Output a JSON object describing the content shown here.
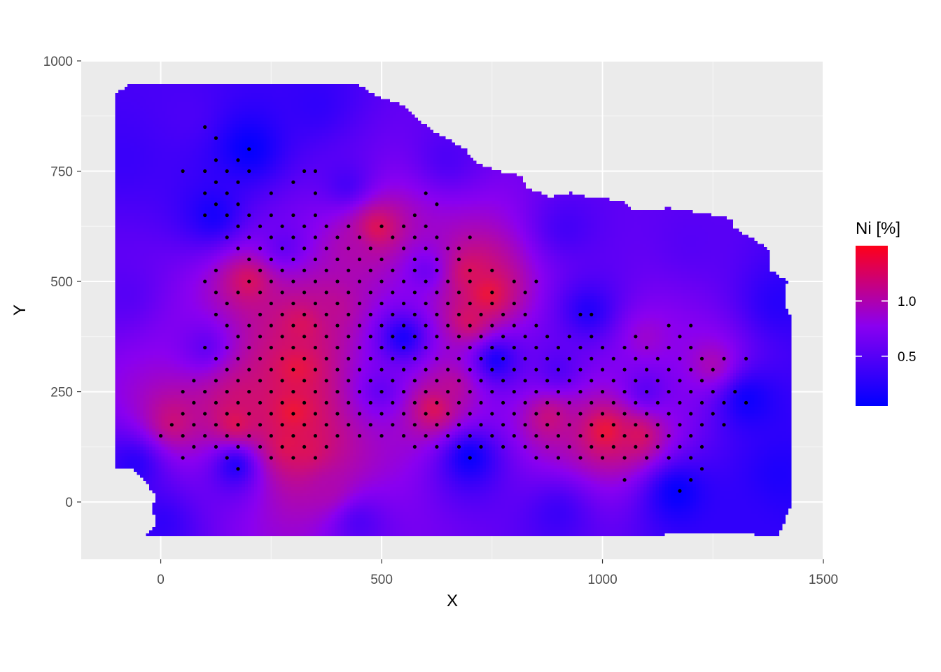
{
  "chart_data": {
    "type": "heatmap",
    "xlabel": "X",
    "ylabel": "Y",
    "xlim": [
      -180,
      1500
    ],
    "ylim": [
      -130,
      1000
    ],
    "x_ticks": [
      0,
      500,
      1000,
      1500
    ],
    "x_tick_labels": [
      "0",
      "500",
      "1000",
      "1500"
    ],
    "y_ticks": [
      0,
      250,
      500,
      750,
      1000
    ],
    "y_tick_labels": [
      "0",
      "250",
      "500",
      "750",
      "1000"
    ],
    "grid": true,
    "legend": {
      "title": "Ni [%]",
      "placement": "right",
      "breaks": [
        0.5,
        1.0
      ],
      "break_labels": [
        "0.5",
        "1.0"
      ],
      "min": 0.05,
      "max": 1.5
    },
    "color_scale": {
      "low": "#0000ff",
      "high": "#ff0018"
    },
    "surface_outline": [
      [
        -105,
        70
      ],
      [
        -60,
        70
      ],
      [
        -40,
        50
      ],
      [
        -25,
        30
      ],
      [
        -10,
        10
      ],
      [
        -20,
        -20
      ],
      [
        -10,
        -50
      ],
      [
        -35,
        -80
      ],
      [
        300,
        -80
      ],
      [
        700,
        -80
      ],
      [
        1000,
        -80
      ],
      [
        1290,
        -75
      ],
      [
        1400,
        -80
      ],
      [
        1430,
        -10
      ],
      [
        1430,
        420
      ],
      [
        1415,
        440
      ],
      [
        1420,
        500
      ],
      [
        1380,
        525
      ],
      [
        1380,
        570
      ],
      [
        1335,
        600
      ],
      [
        1300,
        620
      ],
      [
        1300,
        640
      ],
      [
        1250,
        650
      ],
      [
        1195,
        660
      ],
      [
        1150,
        665
      ],
      [
        1070,
        660
      ],
      [
        1050,
        680
      ],
      [
        990,
        690
      ],
      [
        970,
        690
      ],
      [
        930,
        700
      ],
      [
        880,
        690
      ],
      [
        860,
        700
      ],
      [
        830,
        710
      ],
      [
        820,
        740
      ],
      [
        780,
        745
      ],
      [
        720,
        765
      ],
      [
        690,
        800
      ],
      [
        620,
        840
      ],
      [
        580,
        870
      ],
      [
        550,
        900
      ],
      [
        500,
        915
      ],
      [
        440,
        950
      ],
      [
        250,
        950
      ],
      [
        100,
        950
      ],
      [
        -70,
        950
      ],
      [
        -105,
        920
      ]
    ],
    "ni_points": [
      {
        "x": 300,
        "y": 200,
        "value": 1.45
      },
      {
        "x": 310,
        "y": 300,
        "value": 1.4
      },
      {
        "x": 320,
        "y": 400,
        "value": 1.3
      },
      {
        "x": 290,
        "y": 130,
        "value": 1.35
      },
      {
        "x": 330,
        "y": 120,
        "value": 1.3
      },
      {
        "x": 170,
        "y": 180,
        "value": 1.35
      },
      {
        "x": 190,
        "y": 230,
        "value": 1.2
      },
      {
        "x": 30,
        "y": 180,
        "value": 1.2
      },
      {
        "x": 200,
        "y": 500,
        "value": 1.3
      },
      {
        "x": 490,
        "y": 620,
        "value": 1.35
      },
      {
        "x": 440,
        "y": 570,
        "value": 1.0
      },
      {
        "x": 740,
        "y": 470,
        "value": 1.45
      },
      {
        "x": 700,
        "y": 520,
        "value": 1.3
      },
      {
        "x": 700,
        "y": 410,
        "value": 1.3
      },
      {
        "x": 620,
        "y": 210,
        "value": 1.35
      },
      {
        "x": 660,
        "y": 260,
        "value": 1.1
      },
      {
        "x": 880,
        "y": 190,
        "value": 1.2
      },
      {
        "x": 1010,
        "y": 160,
        "value": 1.45
      },
      {
        "x": 1080,
        "y": 150,
        "value": 1.3
      },
      {
        "x": 1250,
        "y": 310,
        "value": 1.0
      },
      {
        "x": 1100,
        "y": 370,
        "value": 0.9
      },
      {
        "x": 380,
        "y": 30,
        "value": 1.0
      },
      {
        "x": 390,
        "y": 440,
        "value": 1.1
      },
      {
        "x": 200,
        "y": 800,
        "value": 0.05
      },
      {
        "x": 120,
        "y": 650,
        "value": 0.15
      },
      {
        "x": 700,
        "y": 100,
        "value": 0.05
      },
      {
        "x": 760,
        "y": 320,
        "value": 0.1
      },
      {
        "x": 550,
        "y": 370,
        "value": 0.1
      },
      {
        "x": 1170,
        "y": 20,
        "value": 0.05
      },
      {
        "x": 1330,
        "y": 230,
        "value": 0.1
      },
      {
        "x": 170,
        "y": 80,
        "value": 0.15
      },
      {
        "x": 970,
        "y": 430,
        "value": 0.2
      },
      {
        "x": -60,
        "y": 80,
        "value": 0.25
      },
      {
        "x": 1400,
        "y": 60,
        "value": 0.2
      },
      {
        "x": 1400,
        "y": 450,
        "value": 0.25
      },
      {
        "x": 60,
        "y": 880,
        "value": 0.45
      },
      {
        "x": 350,
        "y": 900,
        "value": 0.3
      },
      {
        "x": 650,
        "y": 780,
        "value": 0.45
      },
      {
        "x": 920,
        "y": 620,
        "value": 0.4
      },
      {
        "x": 1200,
        "y": 590,
        "value": 0.5
      },
      {
        "x": -80,
        "y": 470,
        "value": 0.5
      },
      {
        "x": -80,
        "y": 780,
        "value": 0.35
      },
      {
        "x": 0,
        "y": -50,
        "value": 0.3
      },
      {
        "x": 450,
        "y": -50,
        "value": 0.45
      },
      {
        "x": 900,
        "y": -30,
        "value": 0.35
      },
      {
        "x": 1300,
        "y": -50,
        "value": 0.3
      },
      {
        "x": 500,
        "y": 250,
        "value": 0.55
      },
      {
        "x": 600,
        "y": 520,
        "value": 0.6
      },
      {
        "x": 900,
        "y": 300,
        "value": 0.45
      },
      {
        "x": 100,
        "y": 350,
        "value": 0.55
      },
      {
        "x": 1100,
        "y": 250,
        "value": 0.5
      },
      {
        "x": 420,
        "y": 720,
        "value": 0.4
      },
      {
        "x": 280,
        "y": 580,
        "value": 0.55
      }
    ],
    "sample_rows": [
      {
        "y": 850,
        "x": [
          100
        ]
      },
      {
        "y": 825,
        "x": [
          125
        ]
      },
      {
        "y": 800,
        "x": [
          200
        ]
      },
      {
        "y": 775,
        "x": [
          125,
          175
        ]
      },
      {
        "y": 750,
        "x": [
          50,
          100,
          150,
          200,
          325,
          350
        ]
      },
      {
        "y": 725,
        "x": [
          125,
          175,
          300
        ]
      },
      {
        "y": 700,
        "x": [
          100,
          150,
          250,
          350,
          600
        ]
      },
      {
        "y": 675,
        "x": [
          125,
          175,
          625
        ]
      },
      {
        "y": 650,
        "x": [
          100,
          150,
          200,
          250,
          300,
          350,
          575
        ]
      },
      {
        "y": 625,
        "x": [
          175,
          225,
          275,
          325,
          375,
          425,
          500,
          550,
          600
        ]
      },
      {
        "y": 600,
        "x": [
          150,
          200,
          250,
          300,
          350,
          400,
          450,
          525,
          575,
          625,
          700
        ]
      },
      {
        "y": 575,
        "x": [
          175,
          225,
          275,
          325,
          375,
          425,
          475,
          550,
          600,
          650,
          675
        ]
      },
      {
        "y": 550,
        "x": [
          200,
          250,
          300,
          350,
          400,
          450,
          500,
          575,
          625,
          675
        ]
      },
      {
        "y": 525,
        "x": [
          125,
          225,
          275,
          325,
          375,
          425,
          475,
          525,
          575,
          625,
          700,
          750
        ]
      },
      {
        "y": 500,
        "x": [
          100,
          200,
          250,
          300,
          350,
          400,
          450,
          500,
          550,
          600,
          650,
          700,
          800,
          850
        ]
      },
      {
        "y": 475,
        "x": [
          125,
          175,
          225,
          275,
          325,
          375,
          425,
          475,
          525,
          575,
          625,
          675,
          750,
          825
        ]
      },
      {
        "y": 450,
        "x": [
          150,
          250,
          300,
          350,
          400,
          450,
          500,
          550,
          600,
          650,
          700,
          750,
          800
        ]
      },
      {
        "y": 425,
        "x": [
          125,
          225,
          275,
          325,
          375,
          425,
          475,
          525,
          575,
          625,
          675,
          725,
          775,
          825,
          950,
          975
        ]
      },
      {
        "y": 400,
        "x": [
          150,
          200,
          250,
          300,
          350,
          400,
          450,
          500,
          550,
          600,
          650,
          700,
          750,
          800,
          850,
          1150,
          1200
        ]
      },
      {
        "y": 375,
        "x": [
          175,
          225,
          275,
          325,
          375,
          425,
          475,
          525,
          575,
          625,
          675,
          725,
          775,
          825,
          875,
          925,
          975,
          1075,
          1175
        ]
      },
      {
        "y": 350,
        "x": [
          100,
          150,
          200,
          250,
          300,
          350,
          400,
          450,
          500,
          550,
          600,
          650,
          700,
          750,
          800,
          850,
          900,
          950,
          1000,
          1050,
          1100,
          1150,
          1200
        ]
      },
      {
        "y": 325,
        "x": [
          125,
          175,
          225,
          275,
          325,
          375,
          425,
          475,
          525,
          575,
          625,
          675,
          725,
          775,
          825,
          875,
          925,
          975,
          1025,
          1075,
          1125,
          1175,
          1225,
          1275,
          1325
        ]
      },
      {
        "y": 300,
        "x": [
          150,
          200,
          250,
          300,
          350,
          400,
          450,
          500,
          550,
          600,
          650,
          700,
          750,
          800,
          850,
          900,
          950,
          1000,
          1050,
          1100,
          1150,
          1200,
          1250
        ]
      },
      {
        "y": 275,
        "x": [
          75,
          125,
          175,
          225,
          275,
          325,
          375,
          425,
          475,
          525,
          575,
          625,
          675,
          725,
          775,
          825,
          875,
          925,
          975,
          1025,
          1075,
          1125,
          1175,
          1225
        ]
      },
      {
        "y": 250,
        "x": [
          50,
          100,
          150,
          200,
          250,
          300,
          350,
          400,
          450,
          500,
          550,
          600,
          650,
          700,
          750,
          800,
          850,
          900,
          950,
          1000,
          1050,
          1100,
          1150,
          1200,
          1250,
          1300
        ]
      },
      {
        "y": 225,
        "x": [
          75,
          125,
          175,
          225,
          275,
          325,
          375,
          425,
          475,
          525,
          575,
          625,
          675,
          725,
          775,
          825,
          875,
          925,
          975,
          1025,
          1075,
          1125,
          1175,
          1225,
          1275,
          1325
        ]
      },
      {
        "y": 200,
        "x": [
          50,
          100,
          150,
          200,
          250,
          300,
          350,
          400,
          450,
          500,
          550,
          600,
          650,
          700,
          750,
          800,
          850,
          900,
          950,
          1000,
          1050,
          1100,
          1150,
          1200,
          1250
        ]
      },
      {
        "y": 175,
        "x": [
          25,
          75,
          125,
          175,
          225,
          275,
          325,
          375,
          425,
          475,
          525,
          575,
          625,
          675,
          725,
          775,
          825,
          875,
          925,
          975,
          1025,
          1075,
          1125,
          1175,
          1225,
          1275
        ]
      },
      {
        "y": 150,
        "x": [
          0,
          50,
          100,
          150,
          200,
          250,
          300,
          350,
          400,
          450,
          500,
          550,
          600,
          650,
          700,
          750,
          800,
          850,
          900,
          950,
          1000,
          1050,
          1100,
          1150,
          1200
        ]
      },
      {
        "y": 125,
        "x": [
          75,
          125,
          175,
          225,
          275,
          325,
          375,
          575,
          625,
          675,
          725,
          775,
          825,
          875,
          925,
          975,
          1025,
          1075,
          1125,
          1175,
          1225
        ]
      },
      {
        "y": 100,
        "x": [
          50,
          150,
          250,
          300,
          350,
          700,
          850,
          900,
          950,
          1000,
          1050,
          1100,
          1150,
          1200
        ]
      },
      {
        "y": 75,
        "x": [
          175,
          1225
        ]
      },
      {
        "y": 50,
        "x": [
          1050,
          1200
        ]
      },
      {
        "y": 25,
        "x": [
          1175
        ]
      }
    ]
  }
}
